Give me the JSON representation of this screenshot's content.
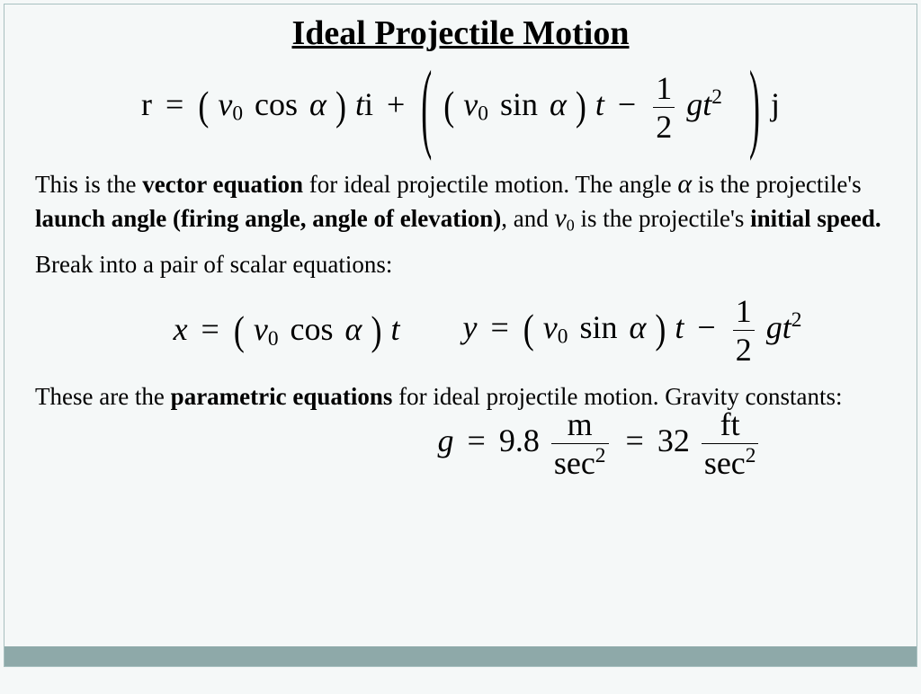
{
  "title": "Ideal Projectile Motion",
  "equations": {
    "main": {
      "r": "r",
      "eq": "=",
      "v0": "v",
      "sub0": "0",
      "cos": "cos",
      "sin": "sin",
      "alpha": "α",
      "t": "t",
      "i": "i",
      "plus": "+",
      "minus": "−",
      "half_num": "1",
      "half_den": "2",
      "g": "g",
      "t2_exp": "2",
      "j": "j"
    },
    "x": {
      "x": "x"
    },
    "y": {
      "y": "y"
    },
    "gravity": {
      "g": "g",
      "eq": "=",
      "val_m": "9.8",
      "unit_m_num": "m",
      "unit_m_den": "sec",
      "val_ft": "32",
      "unit_ft_num": "ft",
      "exp2": "2"
    }
  },
  "text": {
    "p1_a": "This is the ",
    "p1_b": "vector equation",
    "p1_c": " for ideal projectile motion.  The angle ",
    "p1_alpha": "α",
    "p1_d": "  is the projectile's ",
    "p1_e": "launch angle (firing angle, angle of elevation)",
    "p1_f": ", and  ",
    "p1_v": "v",
    "p1_v0": "0",
    "p1_g": "  is the projectile's ",
    "p1_h": "initial speed.",
    "p2": "Break into a pair of scalar equations:",
    "p3_a": "These are the ",
    "p3_b": "parametric equations",
    "p3_c": " for ideal projectile  motion.  Gravity constants:"
  },
  "style": {
    "background": "#f5f8f8",
    "border": "#a8c0c0",
    "bar": "#8ea9a9",
    "title_fontsize": 38,
    "body_fontsize": 27,
    "eq_fontsize": 36
  }
}
